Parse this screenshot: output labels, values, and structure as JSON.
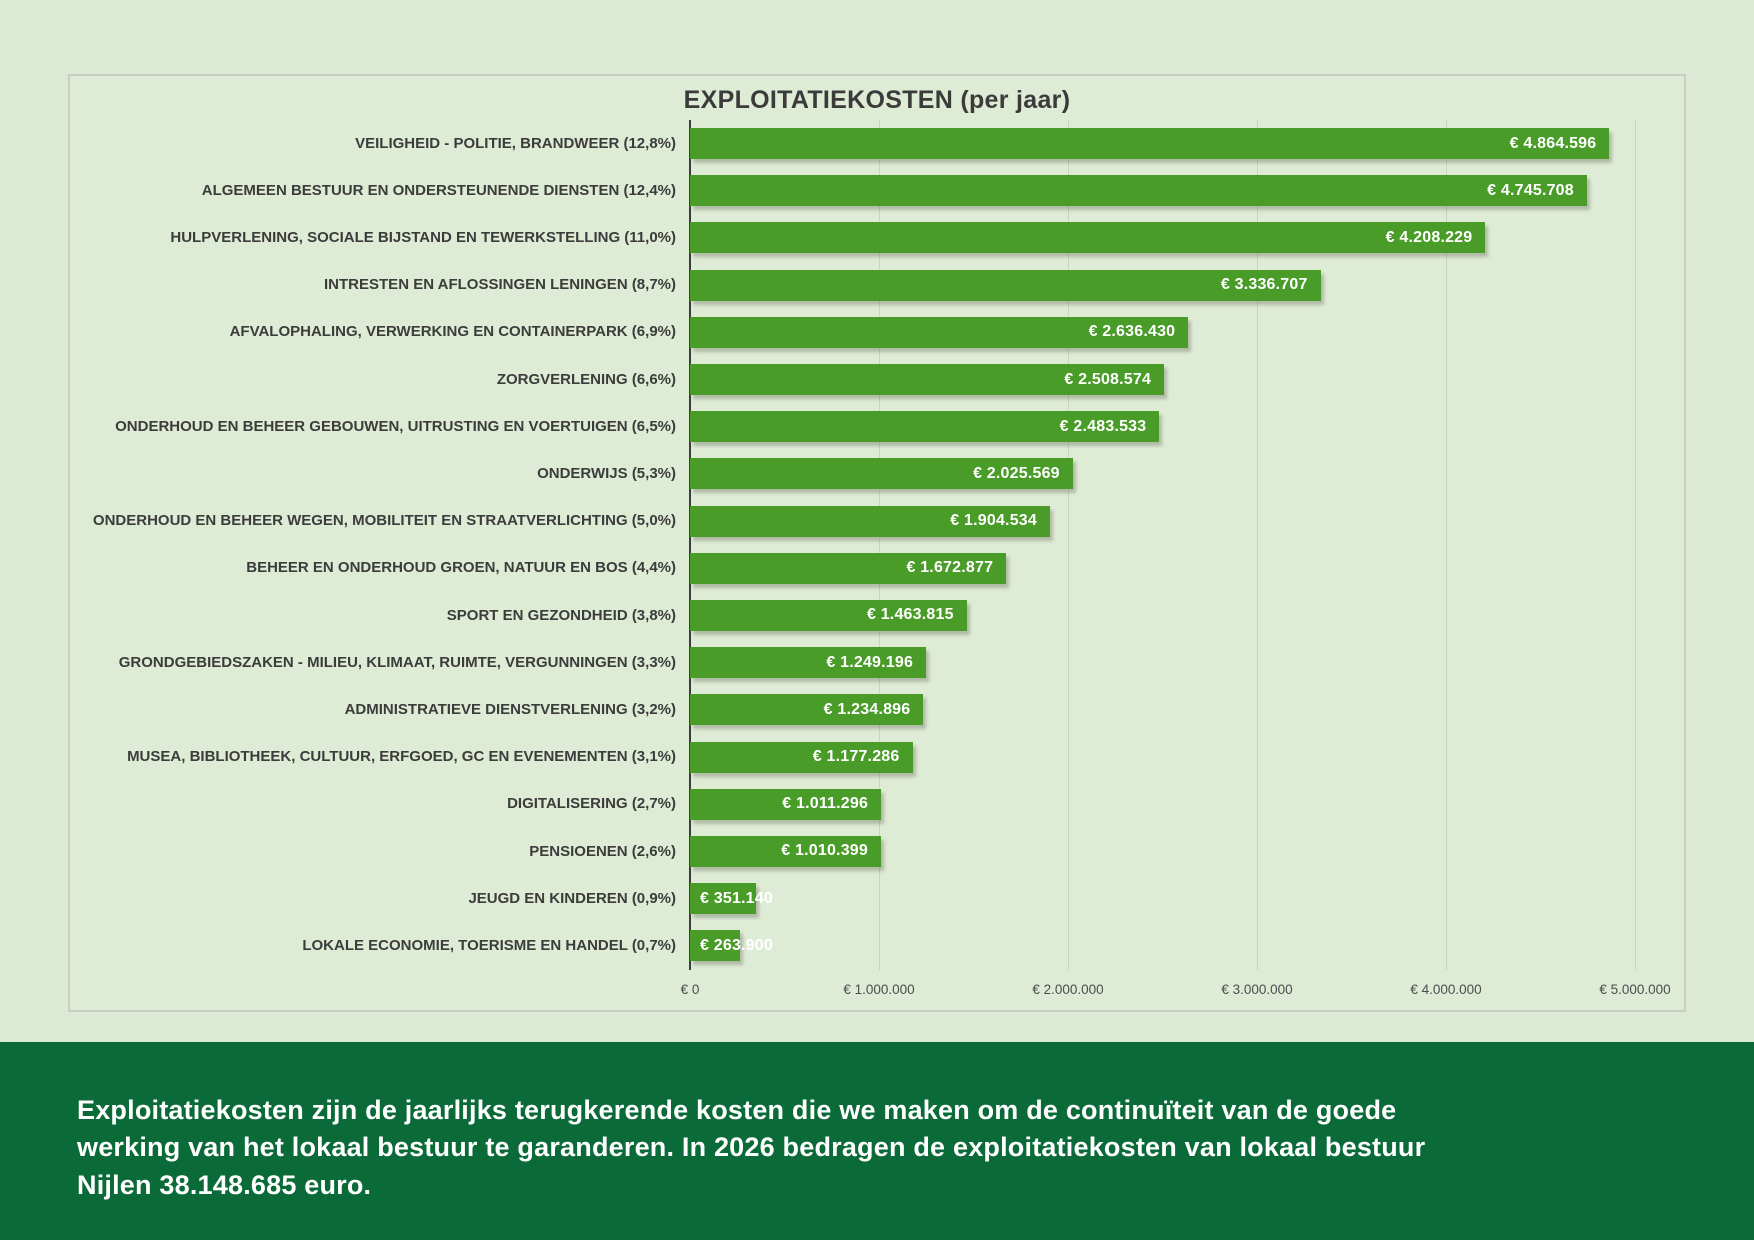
{
  "chart_data": {
    "type": "bar",
    "orientation": "horizontal",
    "title": "EXPLOITATIEKOSTEN (per jaar)",
    "categories": [
      "VEILIGHEID - POLITIE, BRANDWEER (12,8%)",
      "ALGEMEEN BESTUUR EN ONDERSTEUNENDE DIENSTEN (12,4%)",
      "HULPVERLENING, SOCIALE BIJSTAND EN TEWERKSTELLING (11,0%)",
      "INTRESTEN EN AFLOSSINGEN LENINGEN (8,7%)",
      "AFVALOPHALING, VERWERKING EN CONTAINERPARK (6,9%)",
      "ZORGVERLENING (6,6%)",
      "ONDERHOUD EN BEHEER GEBOUWEN, UITRUSTING EN VOERTUIGEN (6,5%)",
      "ONDERWIJS (5,3%)",
      "ONDERHOUD EN BEHEER WEGEN, MOBILITEIT EN STRAATVERLICHTING (5,0%)",
      "BEHEER EN ONDERHOUD GROEN, NATUUR EN BOS (4,4%)",
      "SPORT EN GEZONDHEID (3,8%)",
      "GRONDGEBIEDSZAKEN - MILIEU, KLIMAAT, RUIMTE, VERGUNNINGEN (3,3%)",
      "ADMINISTRATIEVE DIENSTVERLENING (3,2%)",
      "MUSEA, BIBLIOTHEEK, CULTUUR, ERFGOED, GC EN EVENEMENTEN (3,1%)",
      "DIGITALISERING (2,7%)",
      "PENSIOENEN (2,6%)",
      "JEUGD EN KINDEREN (0,9%)",
      "LOKALE ECONOMIE, TOERISME EN HANDEL (0,7%)"
    ],
    "values": [
      4864596,
      4745708,
      4208229,
      3336707,
      2636430,
      2508574,
      2483533,
      2025569,
      1904534,
      1672877,
      1463815,
      1249196,
      1234896,
      1177286,
      1011296,
      1010399,
      351140,
      263900
    ],
    "value_labels": [
      "€ 4.864.596",
      "€ 4.745.708",
      "€ 4.208.229",
      "€ 3.336.707",
      "€ 2.636.430",
      "€ 2.508.574",
      "€ 2.483.533",
      "€ 2.025.569",
      "€ 1.904.534",
      "€ 1.672.877",
      "€ 1.463.815",
      "€ 1.249.196",
      "€ 1.234.896",
      "€ 1.177.286",
      "€ 1.011.296",
      "€ 1.010.399",
      "€ 351.140",
      "€ 263.900"
    ],
    "x_ticks": [
      "€ 0",
      "€ 1.000.000",
      "€ 2.000.000",
      "€ 3.000.000",
      "€ 4.000.000",
      "€ 5.000.000"
    ],
    "xlim": [
      0,
      5000000
    ],
    "grid": true,
    "bar_color": "#4a9c28"
  },
  "footer": {
    "text": "Exploitatiekosten zijn de jaarlijks terugkerende kosten die we maken om de continuïteit van de goede werking van het lokaal bestuur te garanderen. In 2026 bedragen de exploitatiekosten van lokaal bestuur Nijlen 38.148.685 euro."
  },
  "colors": {
    "page_background": "#dcead3",
    "panel_background": "#deebd5",
    "bar": "#4a9c28",
    "footer_background": "#0a6b39",
    "label_text": "#3c3c3c",
    "value_text": "#ffffff"
  }
}
